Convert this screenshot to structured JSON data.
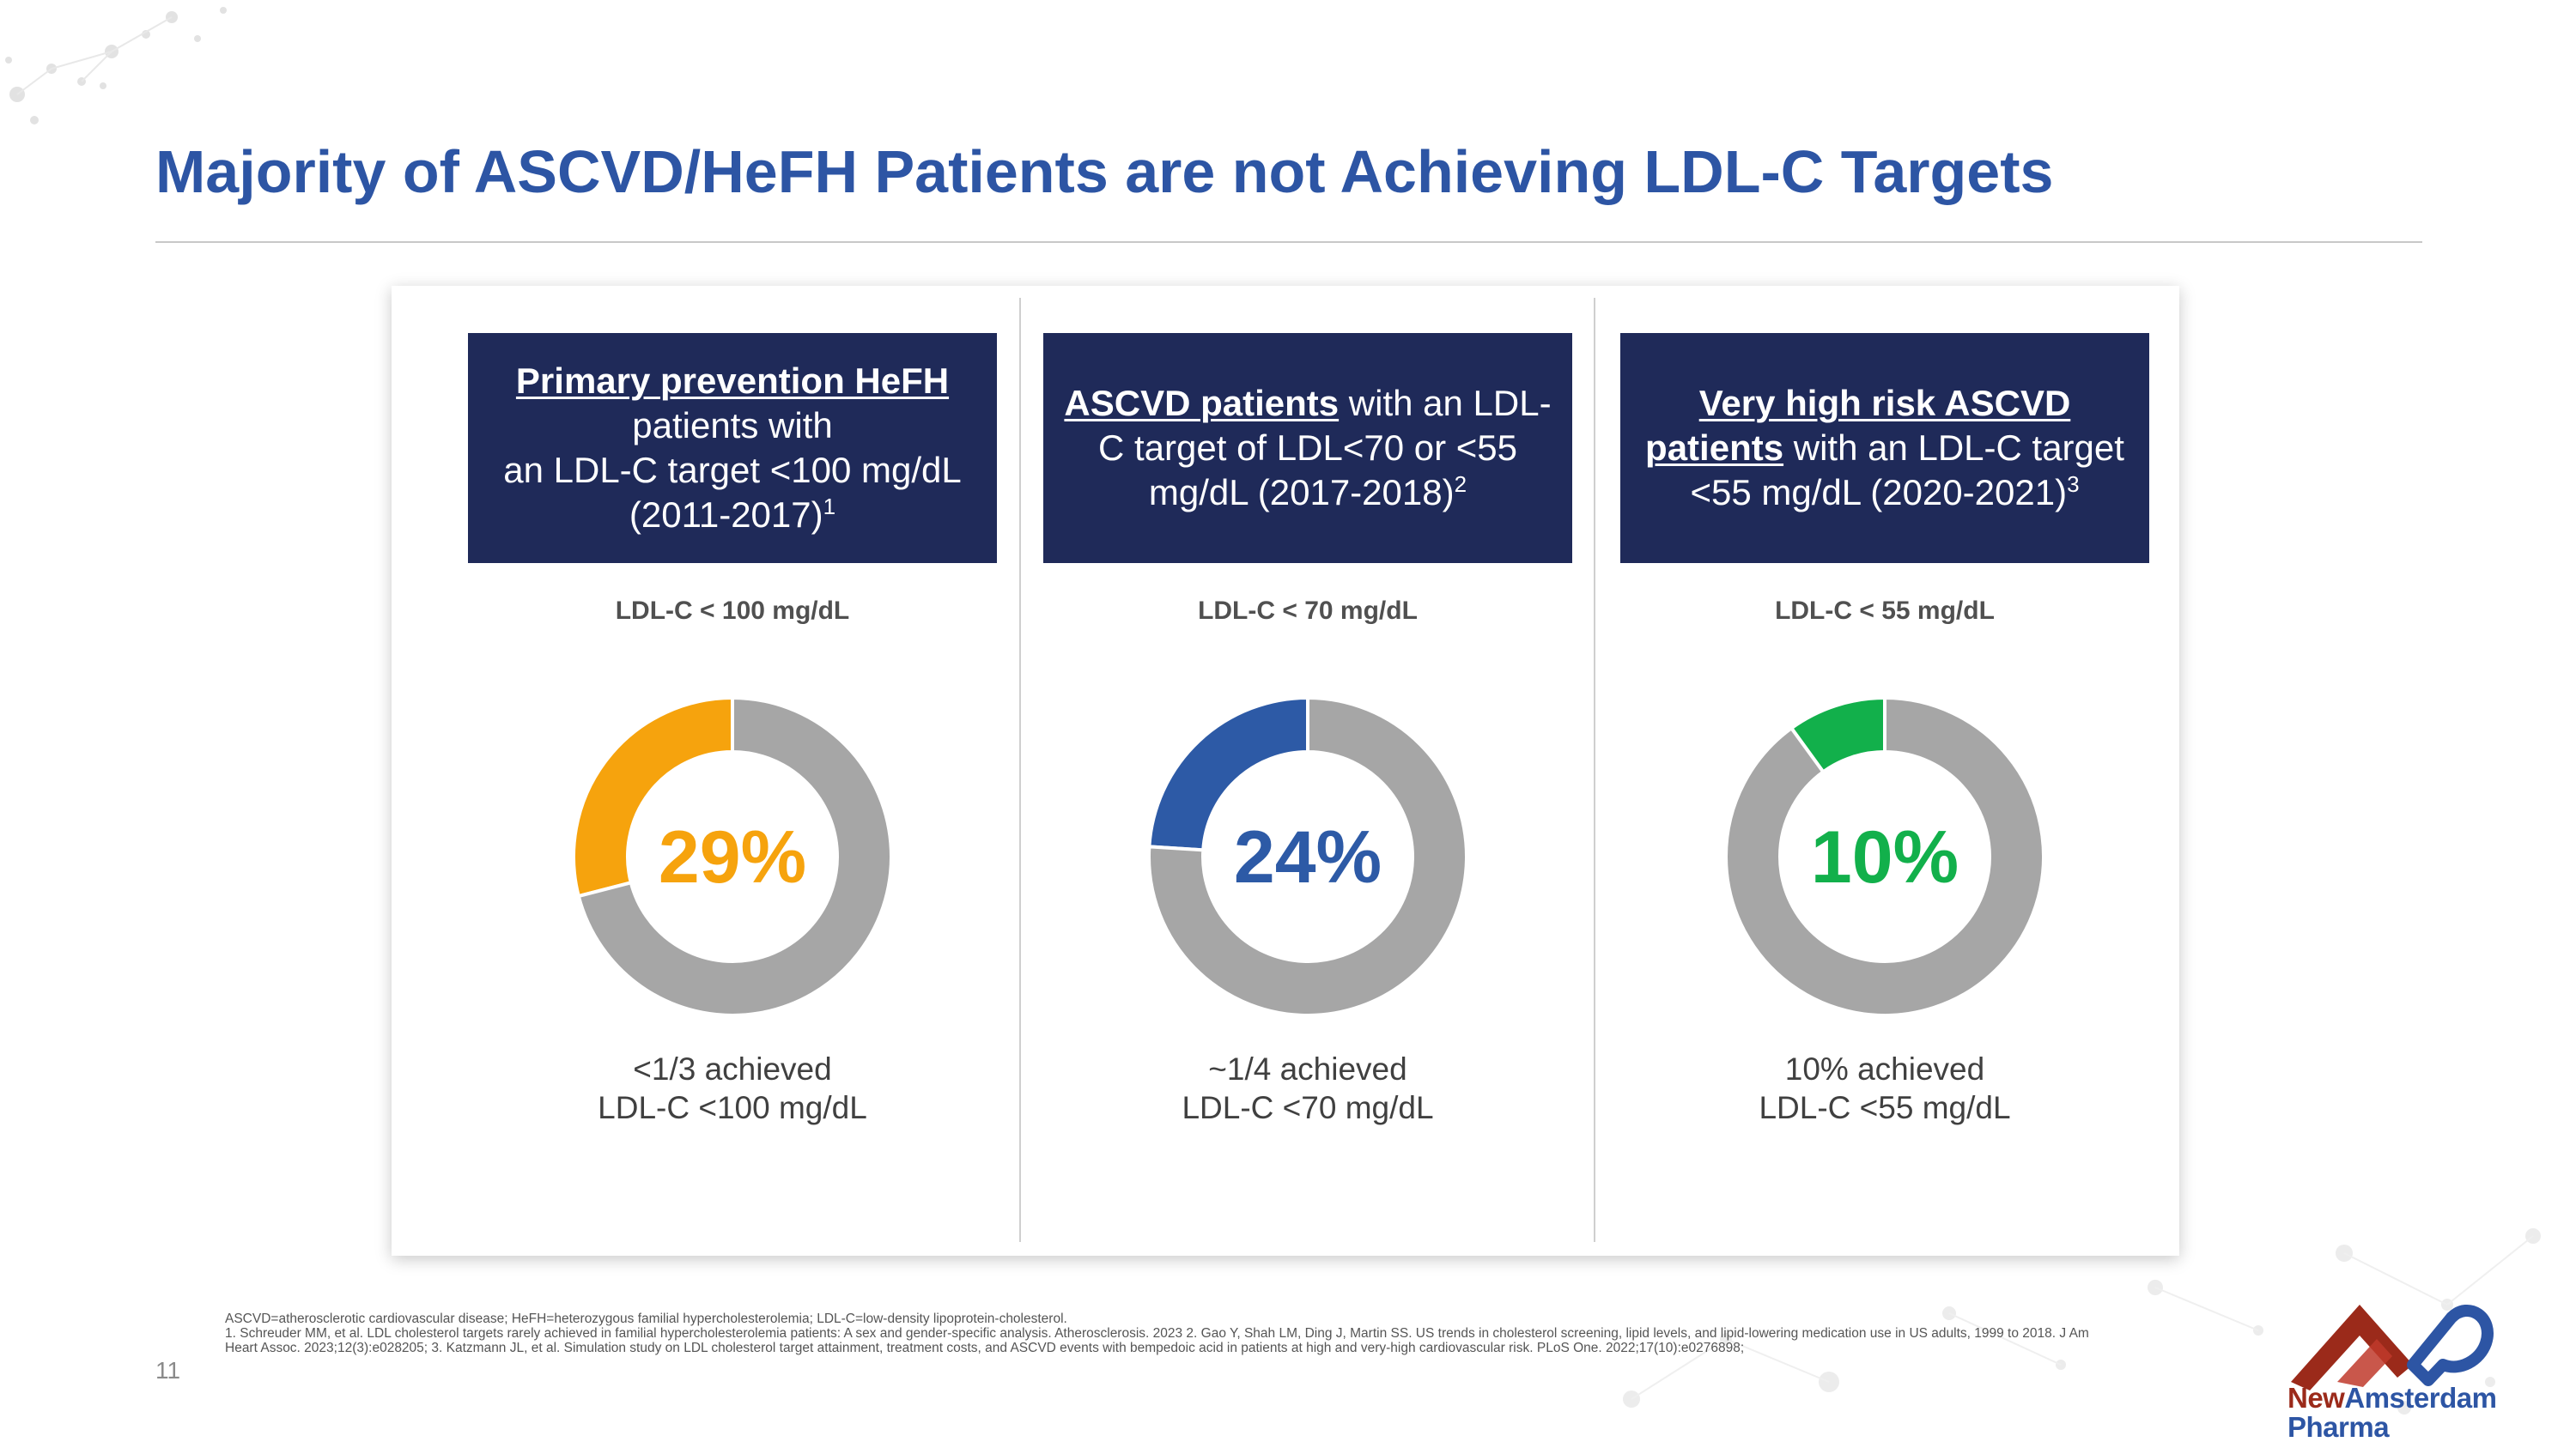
{
  "title": "Majority of ASCVD/HeFH Patients are not Achieving LDL-C Targets",
  "page_number": "11",
  "colors": {
    "title": "#2d55a4",
    "header_bg": "#1f2a59",
    "gray_ring": "#a6a6a6",
    "orange": "#f6a30d",
    "blue": "#2d5aa6",
    "green": "#12b04b"
  },
  "panels": [
    {
      "header_bold": "Primary prevention HeFH",
      "header_text_1": "patients with",
      "header_text_2": "an LDL-C target <100 mg/dL (2011-2017)",
      "header_sup": "1",
      "label": "LDL-C < 100 mg/dL",
      "percent_text": "29%",
      "caption_line1": "<1/3 achieved",
      "caption_line2": "LDL-C <100 mg/dL"
    },
    {
      "header_bold": "ASCVD patients",
      "header_text_1": " with an LDL-C target of LDL<70 or <55 mg/dL (2017-2018)",
      "header_sup": "2",
      "label": "LDL-C < 70 mg/dL",
      "percent_text": "24%",
      "caption_line1": "~1/4 achieved",
      "caption_line2": "LDL-C <70 mg/dL"
    },
    {
      "header_bold_1": "Very high risk ASCVD",
      "header_bold_2": "patients",
      "header_text_1": " with an LDL-C target <55 mg/dL (2020-2021)",
      "header_sup": "3",
      "label": "LDL-C < 55 mg/dL",
      "percent_text": "10%",
      "caption_line1": "10% achieved",
      "caption_line2": "LDL-C <55 mg/dL"
    }
  ],
  "chart_data": [
    {
      "type": "pie",
      "title": "LDL-C < 100 mg/dL",
      "categories": [
        "Achieved",
        "Not achieved"
      ],
      "values": [
        29,
        71
      ],
      "colors": [
        "#f6a30d",
        "#a6a6a6"
      ],
      "center_label": "29%"
    },
    {
      "type": "pie",
      "title": "LDL-C < 70 mg/dL",
      "categories": [
        "Achieved",
        "Not achieved"
      ],
      "values": [
        24,
        76
      ],
      "colors": [
        "#2d5aa6",
        "#a6a6a6"
      ],
      "center_label": "24%"
    },
    {
      "type": "pie",
      "title": "LDL-C < 55 mg/dL",
      "categories": [
        "Achieved",
        "Not achieved"
      ],
      "values": [
        10,
        90
      ],
      "colors": [
        "#12b04b",
        "#a6a6a6"
      ],
      "center_label": "10%"
    }
  ],
  "footnotes": {
    "line1": "ASCVD=atherosclerotic cardiovascular disease; HeFH=heterozygous familial hypercholesterolemia; LDL-C=low-density lipoprotein-cholesterol.",
    "line2": "1. Schreuder MM, et al. LDL cholesterol targets rarely achieved in familial hypercholesterolemia patients: A sex and gender-specific analysis. Atherosclerosis. 2023 2. Gao Y, Shah LM, Ding J, Martin SS. US trends in cholesterol screening, lipid levels, and lipid-lowering medication use in US adults, 1999 to 2018. J Am Heart Assoc. 2023;12(3):e028205; 3. Katzmann JL, et al. Simulation study on LDL cholesterol target attainment, treatment costs, and ASCVD events with bempedoic acid in patients at high and very-high cardiovascular risk. PLoS One. 2022;17(10):e0276898;"
  },
  "logo": {
    "line1_a": "New",
    "line1_b": "Amsterdam",
    "line2": "Pharma"
  }
}
